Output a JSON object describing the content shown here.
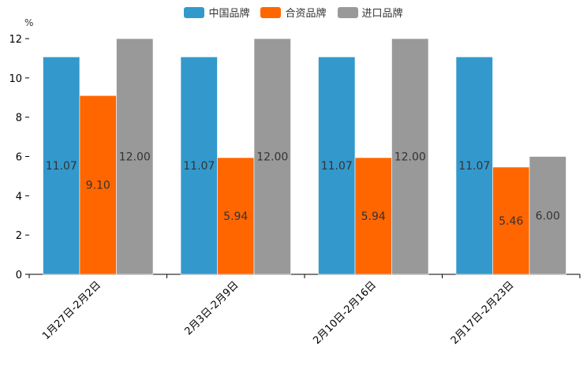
{
  "chart_data": {
    "type": "bar",
    "unit_label": "%",
    "categories": [
      "1月27日-2月2日",
      "2月3日-2月9日",
      "2月10日-2月16日",
      "2月17日-2月23日"
    ],
    "series": [
      {
        "name": "中国品牌",
        "color": "#3399CC",
        "values": [
          11.07,
          11.07,
          11.07,
          11.07
        ],
        "labels": [
          "11.07",
          "11.07",
          "11.07",
          "11.07"
        ]
      },
      {
        "name": "合资品牌",
        "color": "#FF6600",
        "values": [
          9.1,
          5.94,
          5.94,
          5.46
        ],
        "labels": [
          "9.10",
          "5.94",
          "5.94",
          "5.46"
        ]
      },
      {
        "name": "进口品牌",
        "color": "#999999",
        "values": [
          12.0,
          12.0,
          12.0,
          6.0
        ],
        "labels": [
          "12.00",
          "12.00",
          "12.00",
          "6.00"
        ]
      }
    ],
    "ylim": [
      0,
      12
    ],
    "yticks": [
      "0",
      "2",
      "4",
      "6",
      "8",
      "10",
      "12"
    ],
    "legend_position": "top-center"
  }
}
